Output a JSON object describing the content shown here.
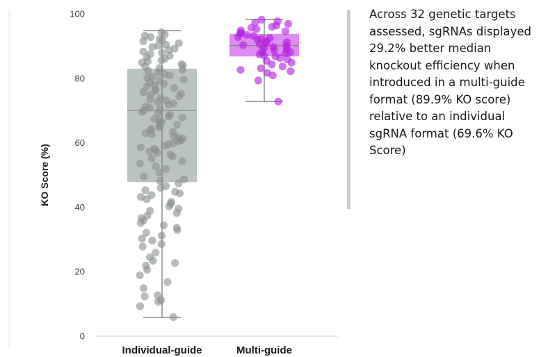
{
  "chart_data": {
    "type": "box",
    "ylabel": "KO Score (%)",
    "ylim": [
      0,
      100
    ],
    "yticks": [
      0,
      20,
      40,
      60,
      80,
      100
    ],
    "categories": [
      "Individual-guide",
      "Multi-guide"
    ],
    "series": [
      {
        "name": "Individual-guide",
        "color": "#8a9292",
        "box_color": "#b5bcbc",
        "min": 5.8,
        "q1": 47.8,
        "median": 70.1,
        "q3": 83.0,
        "max": 94.8,
        "points": [
          94.3,
          93.6,
          93.2,
          92.8,
          92.2,
          91.8,
          91.5,
          90.9,
          90.4,
          90.1,
          89.7,
          89.2,
          88.8,
          88.3,
          87.9,
          87.5,
          87.0,
          86.5,
          86.1,
          85.6,
          85.2,
          84.9,
          84.4,
          84.0,
          83.6,
          83.2,
          82.7,
          82.3,
          81.8,
          81.4,
          80.9,
          80.5,
          80.1,
          79.6,
          79.2,
          78.8,
          78.3,
          77.9,
          77.4,
          77.0,
          76.6,
          76.1,
          75.7,
          75.2,
          74.8,
          74.4,
          73.9,
          73.5,
          73.1,
          72.6,
          72.2,
          71.8,
          71.3,
          70.9,
          70.4,
          70.0,
          69.6,
          69.1,
          68.7,
          68.2,
          67.8,
          67.4,
          66.9,
          66.5,
          66.1,
          65.6,
          65.2,
          64.8,
          64.3,
          63.9,
          63.4,
          63.0,
          62.6,
          62.1,
          61.7,
          61.3,
          60.8,
          60.4,
          59.9,
          59.5,
          59.1,
          58.6,
          58.2,
          57.8,
          57.3,
          56.9,
          56.4,
          55.8,
          55.1,
          54.3,
          53.6,
          52.7,
          51.9,
          50.8,
          49.6,
          48.7,
          48.2,
          47.4,
          46.6,
          46.0,
          45.3,
          44.8,
          44.3,
          43.8,
          43.2,
          42.5,
          41.7,
          41.1,
          40.3,
          39.6,
          38.9,
          38.2,
          37.4,
          36.6,
          35.9,
          35.1,
          34.4,
          33.6,
          32.9,
          32.1,
          31.2,
          30.3,
          29.7,
          28.6,
          27.8,
          25.9,
          24.5,
          23.4,
          22.7,
          21.9,
          20.6,
          18.9,
          16.8,
          14.9,
          12.7,
          12.3,
          11.2,
          10.7,
          9.3,
          5.9
        ]
      },
      {
        "name": "Multi-guide",
        "color": "#b520e0",
        "box_color": "#d779ef",
        "min": 72.8,
        "q1": 86.8,
        "median": 90.2,
        "q3": 93.8,
        "max": 98.2,
        "points": [
          98.2,
          97.7,
          97.3,
          96.9,
          96.4,
          96.0,
          95.7,
          95.3,
          94.9,
          94.6,
          94.2,
          93.9,
          93.5,
          93.2,
          92.8,
          92.5,
          92.2,
          91.9,
          91.5,
          91.2,
          90.9,
          90.6,
          90.3,
          90.0,
          89.7,
          89.4,
          89.1,
          88.8,
          88.4,
          88.1,
          87.8,
          87.4,
          87.1,
          86.8,
          86.3,
          85.9,
          85.4,
          84.9,
          84.3,
          83.7,
          83.1,
          82.6,
          82.2,
          81.7,
          80.9,
          79.3,
          72.8
        ]
      }
    ]
  },
  "side_note": "Across 32 genetic targets assessed, sgRNAs displayed 29.2% better median knockout efficiency when introduced in a multi-guide format (89.9% KO score) relative to an individual sgRNA format (69.6% KO Score)"
}
